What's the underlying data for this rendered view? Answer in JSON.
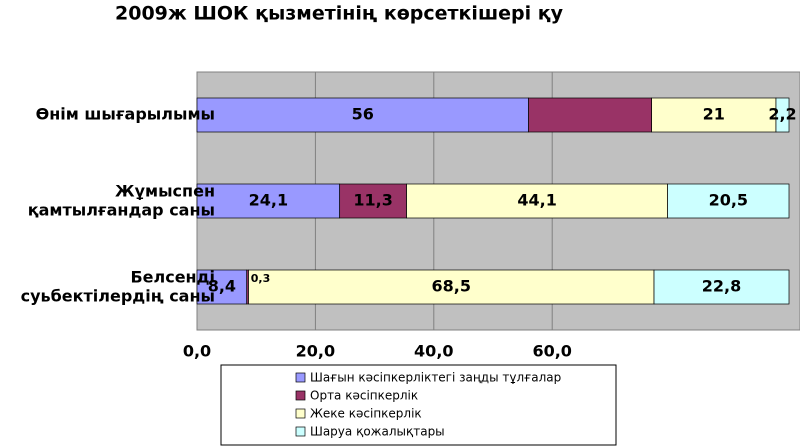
{
  "chart_data": {
    "type": "stacked-barh",
    "title": "2009ж ШОК қызметінің көрсеткішері қу",
    "categories": [
      "Өнім шығарылымы",
      "Жұмыспен қамтылғандар саны",
      "Белсенді суьбектілердің саны"
    ],
    "series": [
      {
        "name": "Шағын кәсіпкерліктегі заңды тұлғалар",
        "color": "#9999ff",
        "values": [
          56,
          24.1,
          8.4
        ],
        "value_labels": [
          "56",
          "24,1",
          "8,4"
        ]
      },
      {
        "name": "Орта кәсіпкерлік",
        "color": "#993366",
        "values": [
          20.8,
          11.3,
          0.3
        ],
        "value_labels": [
          null,
          "11,3",
          "0,3"
        ]
      },
      {
        "name": "Жеке кәсіпкерлік",
        "color": "#ffffcc",
        "values": [
          21,
          44.1,
          68.5
        ],
        "value_labels": [
          "21",
          "44,1",
          "68,5"
        ]
      },
      {
        "name": "Шаруа қожалықтары",
        "color": "#ccffff",
        "values": [
          2.2,
          20.5,
          22.8
        ],
        "value_labels": [
          "2,2",
          "20,5",
          "22,8"
        ]
      }
    ],
    "xlim": [
      0,
      100
    ],
    "xticks": [
      {
        "value": 0,
        "label": "0,0"
      },
      {
        "value": 20,
        "label": "20,0"
      },
      {
        "value": 40,
        "label": "40,0"
      },
      {
        "value": 60,
        "label": "60,0"
      }
    ],
    "grid": true,
    "legend": "bottom"
  }
}
